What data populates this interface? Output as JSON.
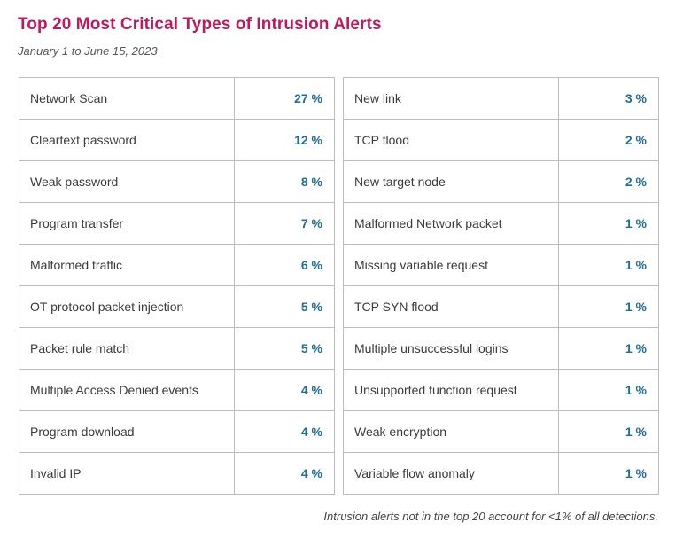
{
  "header": {
    "title": "Top 20 Most Critical Types of Intrusion Alerts",
    "subtitle": "January 1 to June 15, 2023"
  },
  "chart_data": {
    "type": "table",
    "title": "Top 20 Most Critical Types of Intrusion Alerts",
    "subtitle": "January 1 to June 15, 2023",
    "unit": "%",
    "left": [
      {
        "label": "Network Scan",
        "value": 27,
        "display": "27 %"
      },
      {
        "label": "Cleartext password",
        "value": 12,
        "display": "12 %"
      },
      {
        "label": "Weak password",
        "value": 8,
        "display": "8 %"
      },
      {
        "label": "Program transfer",
        "value": 7,
        "display": "7 %"
      },
      {
        "label": "Malformed traffic",
        "value": 6,
        "display": "6 %"
      },
      {
        "label": "OT protocol packet injection",
        "value": 5,
        "display": "5 %"
      },
      {
        "label": "Packet rule match",
        "value": 5,
        "display": "5 %"
      },
      {
        "label": "Multiple Access Denied events",
        "value": 4,
        "display": "4 %"
      },
      {
        "label": "Program download",
        "value": 4,
        "display": "4 %"
      },
      {
        "label": "Invalid IP",
        "value": 4,
        "display": "4 %"
      }
    ],
    "right": [
      {
        "label": "New link",
        "value": 3,
        "display": "3 %"
      },
      {
        "label": "TCP flood",
        "value": 2,
        "display": "2 %"
      },
      {
        "label": "New target node",
        "value": 2,
        "display": "2 %"
      },
      {
        "label": "Malformed Network packet",
        "value": 1,
        "display": "1 %"
      },
      {
        "label": "Missing variable request",
        "value": 1,
        "display": "1 %"
      },
      {
        "label": "TCP SYN flood",
        "value": 1,
        "display": "1 %"
      },
      {
        "label": "Multiple unsuccessful logins",
        "value": 1,
        "display": "1 %"
      },
      {
        "label": "Unsupported function request",
        "value": 1,
        "display": "1 %"
      },
      {
        "label": "Weak encryption",
        "value": 1,
        "display": "1 %"
      },
      {
        "label": "Variable flow anomaly",
        "value": 1,
        "display": "1 %"
      }
    ]
  },
  "footnote": "Intrusion alerts not in the top 20 account for <1% of all detections."
}
